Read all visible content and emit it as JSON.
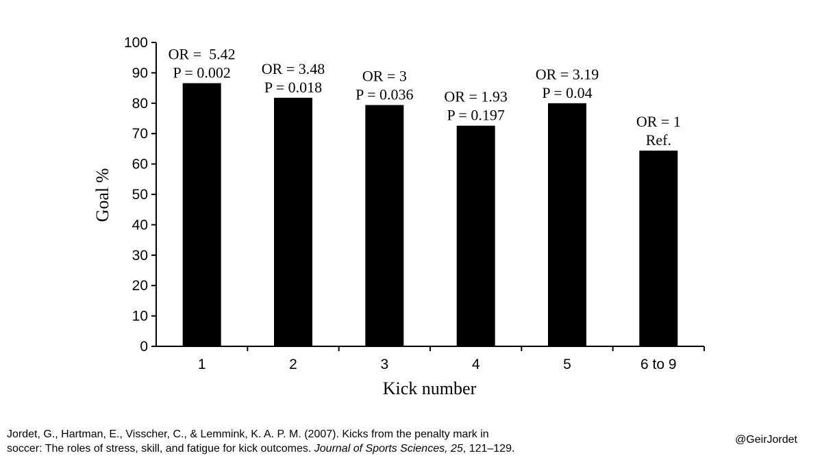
{
  "chart_data": {
    "type": "bar",
    "title": "",
    "xlabel": "Kick number",
    "ylabel": "Goal %",
    "ylim": [
      0,
      100
    ],
    "yticks": [
      0,
      10,
      20,
      30,
      40,
      50,
      60,
      70,
      80,
      90,
      100
    ],
    "grid": false,
    "categories": [
      "1",
      "2",
      "3",
      "4",
      "5",
      "6 to 9"
    ],
    "values": [
      86.6,
      81.8,
      79.4,
      72.6,
      80.0,
      64.4
    ],
    "bar_color": "#000000",
    "annotations": [
      [
        "OR =  5.42",
        "P = 0.002"
      ],
      [
        "OR = 3.48",
        "P = 0.018"
      ],
      [
        "OR = 3",
        "P = 0.036"
      ],
      [
        "OR = 1.93",
        "P = 0.197"
      ],
      [
        "OR = 3.19",
        "P = 0.04"
      ],
      [
        "OR = 1",
        "Ref."
      ]
    ]
  },
  "footer": {
    "citation_line1": "Jordet, G., Hartman,  E., Visscher, C., & Lemmink, K. A. P. M. (2007). Kicks from the penalty mark in",
    "citation_line2_start": "soccer: The roles of stress, skill,  and fatigue for kick outcomes. ",
    "citation_journal": "Journal of Sports Sciences, 25",
    "citation_pages": ", 121–129.",
    "handle": "@GeirJordet"
  }
}
